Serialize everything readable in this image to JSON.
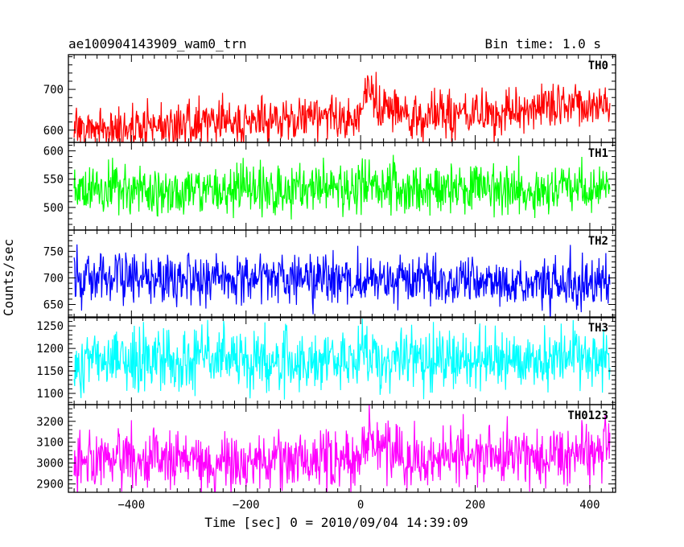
{
  "header": {
    "title": "ae100904143909_wam0_trn",
    "bin_time": "Bin time: 1.0 s"
  },
  "chart_data": {
    "type": "line",
    "title": "ae100904143909_wam0_trn",
    "subtitle": "Bin time: 1.0 s",
    "xlabel": "Time [sec] 0 = 2010/09/04 14:39:09",
    "ylabel": "Counts/sec",
    "xlim": [
      -510,
      445
    ],
    "x_ticks": [
      -400,
      -200,
      0,
      200,
      400
    ],
    "x_tick_labels": [
      "−400",
      "−200",
      "0",
      "200",
      "400"
    ],
    "x_range": [
      -500,
      435
    ],
    "x_step": 1.0,
    "grid": false,
    "panels": [
      {
        "name": "TH0",
        "color": "#ff0000",
        "ylim": [
          570,
          785
        ],
        "y_ticks": [
          600,
          700
        ],
        "y_tick_labels": [
          "600",
          "700"
        ],
        "trend": [
          [
            -500,
            605
          ],
          [
            -400,
            607
          ],
          [
            -300,
            617
          ],
          [
            -200,
            625
          ],
          [
            -100,
            630
          ],
          [
            -20,
            632
          ],
          [
            0,
            652
          ],
          [
            12,
            700
          ],
          [
            25,
            672
          ],
          [
            40,
            645
          ],
          [
            100,
            640
          ],
          [
            200,
            645
          ],
          [
            300,
            652
          ],
          [
            400,
            660
          ],
          [
            435,
            665
          ]
        ],
        "noise_amplitude": 28
      },
      {
        "name": "TH1",
        "color": "#00ff00",
        "ylim": [
          460,
          615
        ],
        "y_ticks": [
          500,
          550,
          600
        ],
        "y_tick_labels": [
          "500",
          "550",
          "600"
        ],
        "trend": [
          [
            -500,
            530
          ],
          [
            -200,
            530
          ],
          [
            -10,
            531
          ],
          [
            5,
            548
          ],
          [
            20,
            540
          ],
          [
            40,
            532
          ],
          [
            200,
            531
          ],
          [
            435,
            531
          ]
        ],
        "noise_amplitude": 22
      },
      {
        "name": "TH2",
        "color": "#0000ff",
        "ylim": [
          625,
          790
        ],
        "y_ticks": [
          650,
          700,
          750
        ],
        "y_tick_labels": [
          "650",
          "700",
          "750"
        ],
        "trend": [
          [
            -500,
            700
          ],
          [
            -200,
            698
          ],
          [
            0,
            696
          ],
          [
            200,
            694
          ],
          [
            435,
            692
          ]
        ],
        "noise_amplitude": 24
      },
      {
        "name": "TH3",
        "color": "#00ffff",
        "ylim": [
          1075,
          1270
        ],
        "y_ticks": [
          1100,
          1150,
          1200,
          1250
        ],
        "y_tick_labels": [
          "1100",
          "1150",
          "1200",
          "1250"
        ],
        "trend": [
          [
            -500,
            1175
          ],
          [
            -200,
            1174
          ],
          [
            0,
            1174
          ],
          [
            200,
            1174
          ],
          [
            435,
            1175
          ]
        ],
        "noise_amplitude": 34
      },
      {
        "name": "TH0123",
        "color": "#ff00ff",
        "ylim": [
          2860,
          3280
        ],
        "y_ticks": [
          2900,
          3000,
          3100,
          3200
        ],
        "y_tick_labels": [
          "2900",
          "3000",
          "3100",
          "3200"
        ],
        "trend": [
          [
            -500,
            3005
          ],
          [
            -300,
            3010
          ],
          [
            -200,
            3010
          ],
          [
            -20,
            3015
          ],
          [
            0,
            3060
          ],
          [
            12,
            3150
          ],
          [
            30,
            3080
          ],
          [
            60,
            3030
          ],
          [
            200,
            3030
          ],
          [
            300,
            3035
          ],
          [
            400,
            3060
          ],
          [
            435,
            3070
          ]
        ],
        "noise_amplitude": 70
      }
    ]
  }
}
